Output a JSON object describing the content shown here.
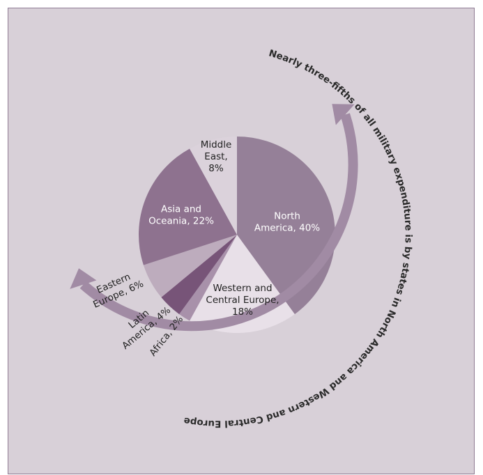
{
  "chart_data": {
    "type": "pie",
    "slices": [
      {
        "label_lines": [
          "North",
          "America, 40%"
        ],
        "value": 40,
        "color": "#958098",
        "label_style": "dark"
      },
      {
        "label_lines": [
          "Western and",
          "Central Europe,",
          "18%"
        ],
        "value": 18,
        "color": "#e8e0e8",
        "label_style": "normal"
      },
      {
        "label_lines": [
          "Africa, 2%"
        ],
        "value": 2,
        "color": "#a891aa",
        "label_style": "normal"
      },
      {
        "label_lines": [
          "Latin",
          "America, 4%"
        ],
        "value": 4,
        "color": "#775478",
        "label_style": "normal"
      },
      {
        "label_lines": [
          "Eastern",
          "Europe, 6%"
        ],
        "value": 6,
        "color": "#bdacbd",
        "label_style": "normal"
      },
      {
        "label_lines": [
          "Asia and",
          "Oceania, 22%"
        ],
        "value": 22,
        "color": "#8e728f",
        "label_style": "dark"
      },
      {
        "label_lines": [
          "Middle",
          "East,",
          "8%"
        ],
        "value": 8,
        "color": "#dbd2db",
        "label_style": "normal"
      }
    ],
    "annotation": "Nearly three-fifths of all military expenditure is by states in North America and Western and Central Europe",
    "arrow_color": "#a18ba4"
  }
}
